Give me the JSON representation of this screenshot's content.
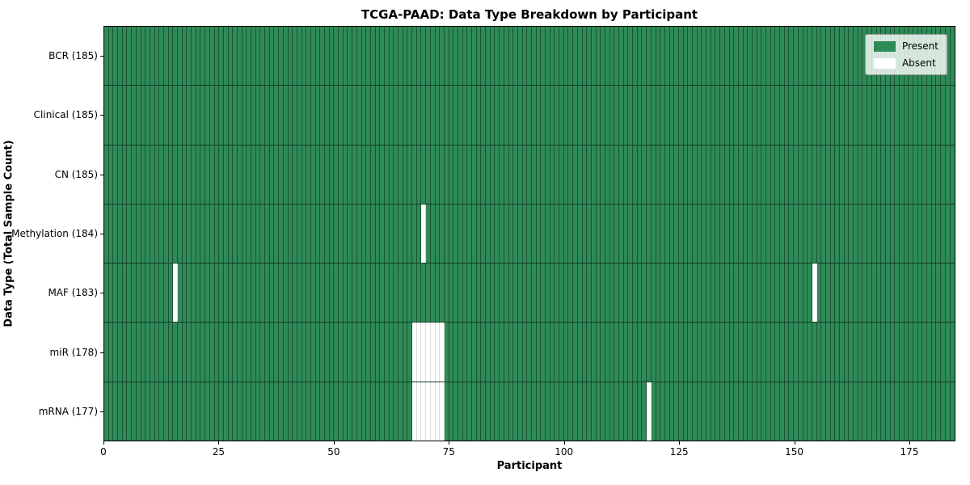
{
  "chart_data": {
    "type": "heatmap",
    "title": "TCGA-PAAD: Data Type Breakdown by Participant",
    "xlabel": "Participant",
    "ylabel": "Data Type (Total Sample Count)",
    "n_participants": 185,
    "xlim": [
      0,
      185
    ],
    "x_ticks": [
      0,
      25,
      50,
      75,
      100,
      125,
      150,
      175
    ],
    "rows": [
      {
        "label": "BCR (185)",
        "data_type": "BCR",
        "present_count": 185,
        "absent_participants": []
      },
      {
        "label": "Clinical (185)",
        "data_type": "Clinical",
        "present_count": 185,
        "absent_participants": []
      },
      {
        "label": "CN (185)",
        "data_type": "CN",
        "present_count": 185,
        "absent_participants": []
      },
      {
        "label": "Methylation (184)",
        "data_type": "Methylation",
        "present_count": 184,
        "absent_participants": [
          69
        ]
      },
      {
        "label": "MAF (183)",
        "data_type": "MAF",
        "present_count": 183,
        "absent_participants": [
          15,
          154
        ]
      },
      {
        "label": "miR (178)",
        "data_type": "miR",
        "present_count": 178,
        "absent_participants": [
          67,
          68,
          69,
          70,
          71,
          72,
          73
        ]
      },
      {
        "label": "mRNA (177)",
        "data_type": "mRNA",
        "present_count": 177,
        "absent_participants": [
          67,
          68,
          69,
          70,
          71,
          72,
          73,
          118
        ]
      }
    ],
    "legend": {
      "position": "upper right",
      "entries": [
        {
          "label": "Present",
          "color": "#2e8b57"
        },
        {
          "label": "Absent",
          "color": "#ffffff"
        }
      ]
    },
    "colors": {
      "present": "#2e8b57",
      "absent": "#ffffff",
      "cell_edge": "rgba(0,0,0,0.40)",
      "spine": "#000000"
    }
  }
}
